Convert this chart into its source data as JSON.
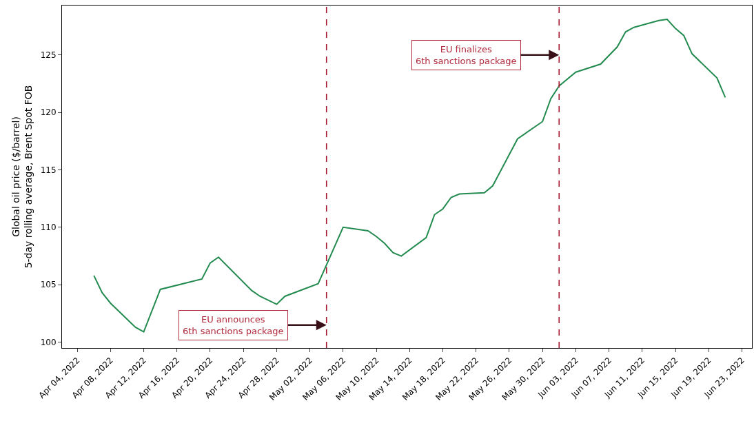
{
  "chart_data": {
    "type": "line",
    "ylabel": "Global oil price ($/barrel)\n5-day rolling average, Brent Spot FOB",
    "x": [
      "2022-04-06",
      "2022-04-07",
      "2022-04-08",
      "2022-04-11",
      "2022-04-12",
      "2022-04-14",
      "2022-04-19",
      "2022-04-20",
      "2022-04-21",
      "2022-04-25",
      "2022-04-26",
      "2022-04-28",
      "2022-04-29",
      "2022-05-03",
      "2022-05-06",
      "2022-05-09",
      "2022-05-10",
      "2022-05-11",
      "2022-05-12",
      "2022-05-13",
      "2022-05-16",
      "2022-05-17",
      "2022-05-18",
      "2022-05-19",
      "2022-05-20",
      "2022-05-23",
      "2022-05-24",
      "2022-05-27",
      "2022-05-30",
      "2022-05-31",
      "2022-06-01",
      "2022-06-03",
      "2022-06-06",
      "2022-06-08",
      "2022-06-09",
      "2022-06-10",
      "2022-06-13",
      "2022-06-14",
      "2022-06-15",
      "2022-06-16",
      "2022-06-17",
      "2022-06-20",
      "2022-06-21"
    ],
    "series": [
      {
        "color": "#238b4f",
        "values": [
          105.8,
          104.3,
          103.4,
          101.3,
          100.9,
          104.6,
          105.5,
          106.9,
          107.4,
          104.5,
          104.0,
          103.3,
          104.0,
          105.1,
          110.0,
          109.7,
          109.2,
          108.6,
          107.8,
          107.5,
          109.1,
          111.1,
          111.6,
          112.6,
          112.9,
          113.0,
          113.6,
          117.7,
          119.2,
          121.2,
          122.3,
          123.5,
          124.2,
          125.7,
          127.0,
          127.4,
          128.0,
          128.1,
          127.3,
          126.7,
          125.1,
          123.0,
          121.3
        ]
      }
    ],
    "xlim": [
      "2022-04-02T04:00",
      "2022-06-24T05:00"
    ],
    "xticks": [
      {
        "value": "2022-04-04",
        "label": "Apr 04, 2022"
      },
      {
        "value": "2022-04-08",
        "label": "Apr 08, 2022"
      },
      {
        "value": "2022-04-12",
        "label": "Apr 12, 2022"
      },
      {
        "value": "2022-04-16",
        "label": "Apr 16, 2022"
      },
      {
        "value": "2022-04-20",
        "label": "Apr 20, 2022"
      },
      {
        "value": "2022-04-24",
        "label": "Apr 24, 2022"
      },
      {
        "value": "2022-04-28",
        "label": "Apr 28, 2022"
      },
      {
        "value": "2022-05-02",
        "label": "May 02, 2022"
      },
      {
        "value": "2022-05-06",
        "label": "May 06, 2022"
      },
      {
        "value": "2022-05-10",
        "label": "May 10, 2022"
      },
      {
        "value": "2022-05-14",
        "label": "May 14, 2022"
      },
      {
        "value": "2022-05-18",
        "label": "May 18, 2022"
      },
      {
        "value": "2022-05-22",
        "label": "May 22, 2022"
      },
      {
        "value": "2022-05-26",
        "label": "May 26, 2022"
      },
      {
        "value": "2022-05-30",
        "label": "May 30, 2022"
      },
      {
        "value": "2022-06-03",
        "label": "Jun 03, 2022"
      },
      {
        "value": "2022-06-07",
        "label": "Jun 07, 2022"
      },
      {
        "value": "2022-06-11",
        "label": "Jun 11, 2022"
      },
      {
        "value": "2022-06-15",
        "label": "Jun 15, 2022"
      },
      {
        "value": "2022-06-19",
        "label": "Jun 19, 2022"
      },
      {
        "value": "2022-06-23",
        "label": "Jun 23, 2022"
      }
    ],
    "ylim": [
      99.5,
      129.3
    ],
    "yticks": [
      100,
      105,
      110,
      115,
      120,
      125
    ],
    "ref_lines": [
      {
        "axis": "x",
        "value": "2022-05-04",
        "color": "#a8182e",
        "line_style": "dashed"
      },
      {
        "axis": "x",
        "value": "2022-06-01",
        "color": "#a8182e",
        "line_style": "dashed"
      }
    ],
    "annotations": [
      {
        "text": "EU announces\n6th sanctions package",
        "x": "2022-05-04",
        "y": 101.5
      },
      {
        "text": "EU finalizes\n6th sanctions package",
        "x": "2022-06-01",
        "y": 125
      }
    ],
    "marker": "none",
    "line_style": "solid"
  }
}
